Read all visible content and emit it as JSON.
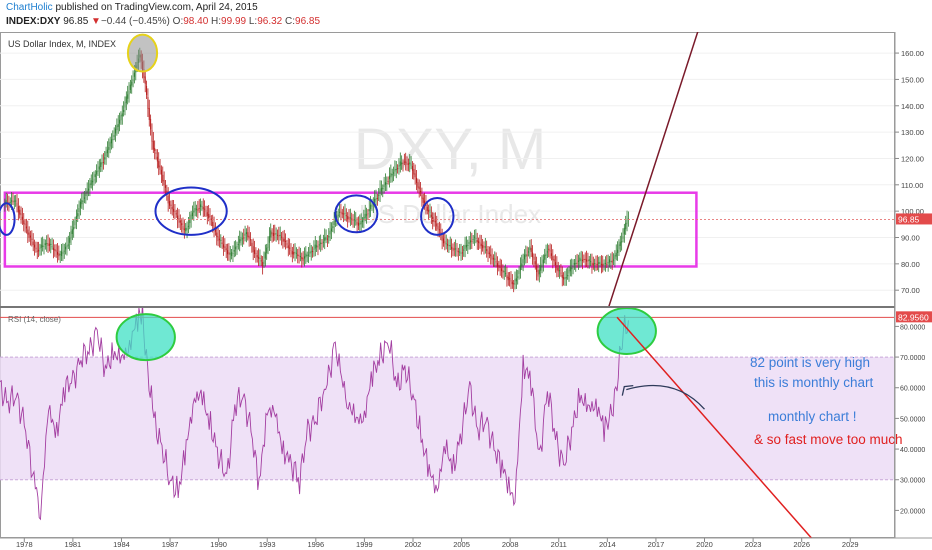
{
  "header": {
    "author": "ChartHolic",
    "published": "published on TradingView.com, April 24, 2015",
    "symbol": "INDEX:DXY",
    "last": "96.85",
    "arrow": "▼",
    "change": "−0.44 (−0.45%)",
    "o_label": "O:",
    "o_value": "98.40",
    "h_label": "H:",
    "h_value": "99.99",
    "l_label": "L:",
    "l_value": "96.32",
    "c_label": "C:",
    "c_value": "96.85"
  },
  "chart_data": [
    {
      "type": "candlestick",
      "title": "US Dollar Index, M, INDEX",
      "watermark_symbol": "DXY, M",
      "watermark_name": "US Dollar Index",
      "ylim": [
        64,
        168
      ],
      "y_ticks": [
        "70.00",
        "80.00",
        "90.00",
        "100.00",
        "110.00",
        "120.00",
        "130.00",
        "140.00",
        "150.00",
        "160.00"
      ],
      "last_price": "96.85",
      "annotation_box": {
        "x": [
          1976.8,
          2019.5
        ],
        "y": [
          79,
          107
        ]
      },
      "path_points": [
        [
          1976.8,
          103
        ],
        [
          1977.5,
          104
        ],
        [
          1978.0,
          96
        ],
        [
          1978.8,
          85
        ],
        [
          1979.5,
          88
        ],
        [
          1980.3,
          83
        ],
        [
          1980.8,
          88
        ],
        [
          1981.5,
          102
        ],
        [
          1982.3,
          112
        ],
        [
          1983.0,
          120
        ],
        [
          1984.0,
          135
        ],
        [
          1984.5,
          145
        ],
        [
          1985.0,
          155
        ],
        [
          1985.2,
          160
        ],
        [
          1985.5,
          150
        ],
        [
          1986.0,
          125
        ],
        [
          1986.5,
          115
        ],
        [
          1987.0,
          103
        ],
        [
          1987.5,
          98
        ],
        [
          1988.0,
          92
        ],
        [
          1988.5,
          100
        ],
        [
          1989.0,
          102
        ],
        [
          1989.5,
          98
        ],
        [
          1990.0,
          90
        ],
        [
          1990.8,
          83
        ],
        [
          1991.3,
          88
        ],
        [
          1991.8,
          92
        ],
        [
          1992.3,
          84
        ],
        [
          1992.8,
          80
        ],
        [
          1993.3,
          92
        ],
        [
          1994.0,
          90
        ],
        [
          1994.5,
          85
        ],
        [
          1995.3,
          82
        ],
        [
          1996.0,
          86
        ],
        [
          1996.8,
          90
        ],
        [
          1997.5,
          100
        ],
        [
          1998.0,
          98
        ],
        [
          1998.8,
          95
        ],
        [
          1999.5,
          102
        ],
        [
          2000.3,
          110
        ],
        [
          2001.0,
          116
        ],
        [
          2001.5,
          119
        ],
        [
          2002.0,
          117
        ],
        [
          2002.5,
          107
        ],
        [
          2003.0,
          100
        ],
        [
          2003.5,
          95
        ],
        [
          2004.0,
          88
        ],
        [
          2005.0,
          84
        ],
        [
          2005.8,
          90
        ],
        [
          2006.5,
          86
        ],
        [
          2007.5,
          78
        ],
        [
          2008.3,
          72
        ],
        [
          2008.9,
          82
        ],
        [
          2009.3,
          86
        ],
        [
          2009.8,
          76
        ],
        [
          2010.4,
          86
        ],
        [
          2011.0,
          78
        ],
        [
          2011.4,
          74
        ],
        [
          2012.0,
          80
        ],
        [
          2012.6,
          82
        ],
        [
          2013.2,
          80
        ],
        [
          2014.0,
          80
        ],
        [
          2014.5,
          82
        ],
        [
          2015.0,
          90
        ],
        [
          2015.3,
          97
        ]
      ],
      "trendline": {
        "from": [
          2014.0,
          62
        ],
        "to": [
          2020.0,
          176
        ]
      },
      "ellipses": [
        {
          "x": 1985.3,
          "y": 160,
          "rx": 0.9,
          "ry": 7,
          "color": "#777777"
        },
        {
          "x": 1976.9,
          "y": 97,
          "rx": 0.5,
          "ry": 6,
          "color": "#1f2fc8"
        },
        {
          "x": 1988.3,
          "y": 100,
          "rx": 2.2,
          "ry": 9,
          "color": "#1f2fc8"
        },
        {
          "x": 1998.5,
          "y": 99,
          "rx": 1.3,
          "ry": 7,
          "color": "#1f2fc8"
        },
        {
          "x": 2003.5,
          "y": 98,
          "rx": 1.0,
          "ry": 7,
          "color": "#1f2fc8"
        }
      ]
    },
    {
      "type": "line",
      "title": "RSI (14, close)",
      "ylim": [
        11,
        86
      ],
      "y_ticks": [
        "20.0000",
        "30.0000",
        "40.0000",
        "50.0000",
        "60.0000",
        "70.0000",
        "80.0000"
      ],
      "band": [
        30,
        70
      ],
      "hline": 82.956,
      "last_value": "82.9560",
      "series_points": [
        [
          1976.5,
          60
        ],
        [
          1977.0,
          55
        ],
        [
          1977.5,
          58
        ],
        [
          1978.0,
          48
        ],
        [
          1978.6,
          30
        ],
        [
          1979.0,
          20
        ],
        [
          1979.5,
          52
        ],
        [
          1980.0,
          46
        ],
        [
          1980.5,
          60
        ],
        [
          1981.0,
          62
        ],
        [
          1981.5,
          70
        ],
        [
          1982.0,
          72
        ],
        [
          1982.5,
          78
        ],
        [
          1983.0,
          66
        ],
        [
          1983.5,
          72
        ],
        [
          1984.0,
          68
        ],
        [
          1984.5,
          75
        ],
        [
          1985.0,
          82
        ],
        [
          1985.3,
          83
        ],
        [
          1985.7,
          62
        ],
        [
          1986.0,
          50
        ],
        [
          1986.5,
          40
        ],
        [
          1987.0,
          30
        ],
        [
          1987.5,
          26
        ],
        [
          1988.0,
          40
        ],
        [
          1988.5,
          58
        ],
        [
          1989.0,
          56
        ],
        [
          1989.5,
          48
        ],
        [
          1990.0,
          38
        ],
        [
          1990.5,
          30
        ],
        [
          1991.0,
          54
        ],
        [
          1991.5,
          58
        ],
        [
          1992.0,
          46
        ],
        [
          1992.5,
          28
        ],
        [
          1993.0,
          54
        ],
        [
          1993.5,
          50
        ],
        [
          1994.0,
          40
        ],
        [
          1995.0,
          30
        ],
        [
          1995.5,
          46
        ],
        [
          1996.0,
          50
        ],
        [
          1996.7,
          62
        ],
        [
          1997.2,
          74
        ],
        [
          1997.6,
          62
        ],
        [
          1998.0,
          56
        ],
        [
          1998.5,
          48
        ],
        [
          1999.0,
          52
        ],
        [
          1999.5,
          64
        ],
        [
          2000.0,
          70
        ],
        [
          2000.5,
          76
        ],
        [
          2001.0,
          60
        ],
        [
          2001.5,
          66
        ],
        [
          2002.0,
          58
        ],
        [
          2002.5,
          44
        ],
        [
          2003.0,
          32
        ],
        [
          2003.5,
          28
        ],
        [
          2004.0,
          40
        ],
        [
          2004.5,
          34
        ],
        [
          2005.0,
          46
        ],
        [
          2005.5,
          60
        ],
        [
          2006.0,
          46
        ],
        [
          2006.5,
          50
        ],
        [
          2007.0,
          40
        ],
        [
          2007.5,
          34
        ],
        [
          2008.0,
          28
        ],
        [
          2008.3,
          22
        ],
        [
          2008.8,
          68
        ],
        [
          2009.3,
          62
        ],
        [
          2009.8,
          36
        ],
        [
          2010.3,
          60
        ],
        [
          2010.8,
          44
        ],
        [
          2011.3,
          34
        ],
        [
          2011.8,
          46
        ],
        [
          2012.3,
          58
        ],
        [
          2012.8,
          52
        ],
        [
          2013.3,
          56
        ],
        [
          2013.8,
          46
        ],
        [
          2014.2,
          50
        ],
        [
          2014.6,
          62
        ],
        [
          2015.0,
          79
        ],
        [
          2015.3,
          82
        ]
      ],
      "ellipses": [
        {
          "x": 1985.5,
          "y": 76.5,
          "rx": 1.8,
          "ry": 7.5,
          "color": "#2ecc40"
        },
        {
          "x": 2015.2,
          "y": 78.5,
          "rx": 1.8,
          "ry": 7.5,
          "color": "#2ecc40"
        }
      ],
      "arrow": {
        "from": [
          2020.0,
          53
        ],
        "to": [
          2014.8,
          62
        ]
      },
      "red_line": {
        "from": [
          2014.6,
          83
        ],
        "to": [
          2026.6,
          11
        ]
      }
    }
  ],
  "x_axis": {
    "ticks": [
      [
        "1978",
        1978
      ],
      [
        "1981",
        1981
      ],
      [
        "1984",
        1984
      ],
      [
        "1987",
        1987
      ],
      [
        "1990",
        1990
      ],
      [
        "1993",
        1993
      ],
      [
        "1996",
        1996
      ],
      [
        "1999",
        1999
      ],
      [
        "2002",
        2002
      ],
      [
        "2005",
        2005
      ],
      [
        "2008",
        2008
      ],
      [
        "2011",
        2011
      ],
      [
        "2014",
        2014
      ],
      [
        "2017",
        2017
      ],
      [
        "2020",
        2020
      ],
      [
        "2023",
        2023
      ],
      [
        "2026",
        2026
      ],
      [
        "2029",
        2029
      ]
    ]
  },
  "annotations": {
    "line1": "82  point  is very high",
    "line2": "this   is  monthly chart",
    "line3": "monthly  chart !",
    "line4": "&  so fast move   too much"
  },
  "colors": {
    "up": "#2e7d32",
    "down": "#b71c1c",
    "box": "#e83be8",
    "rsi": "#a33ea1",
    "band": "#ecdcf6",
    "blue_text": "#3b7dd8",
    "red_text": "#e02020",
    "trend": "#7a1a2a"
  }
}
